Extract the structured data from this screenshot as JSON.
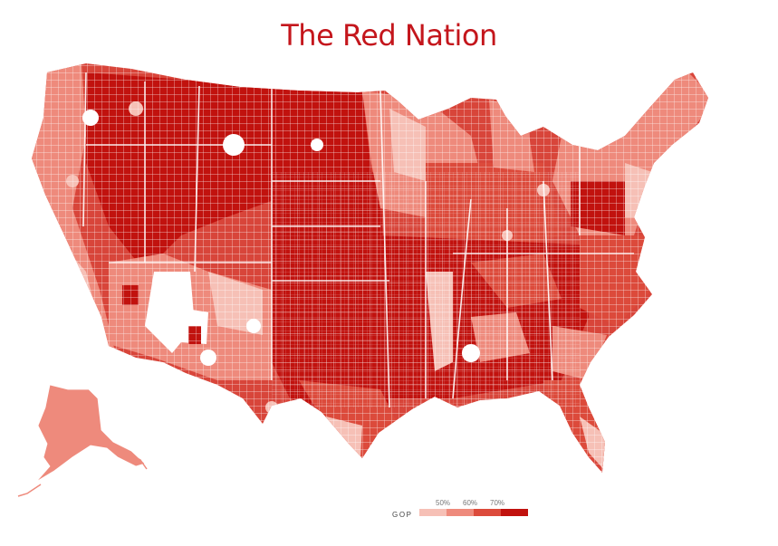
{
  "title": "The Red Nation",
  "legend": {
    "label": "GOP",
    "ticks": [
      "50%",
      "60%",
      "70%"
    ],
    "bins": [
      {
        "color": "#f6c0b6"
      },
      {
        "color": "#ee8a7c"
      },
      {
        "color": "#dc4a3b"
      },
      {
        "color": "#c1120e"
      }
    ]
  },
  "colors": {
    "title": "#c4161c",
    "county_border": "#ffffff"
  }
}
